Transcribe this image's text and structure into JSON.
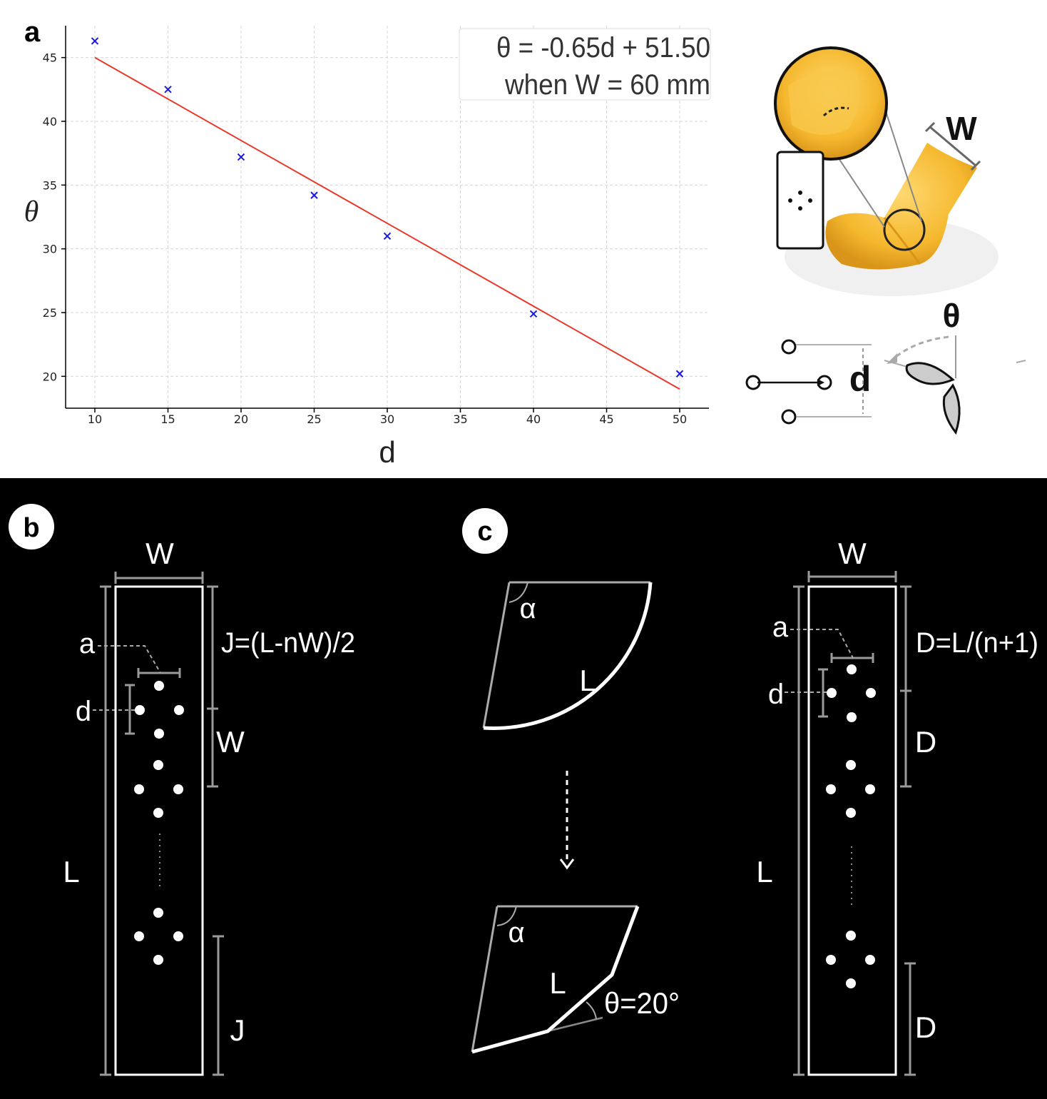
{
  "panel_a": {
    "label": "a",
    "equation": "θ = -0.65d + 51.50",
    "condition": "when W = 60 mm"
  },
  "chart_data": {
    "type": "scatter",
    "title": "",
    "xlabel": "d",
    "ylabel": "θ",
    "xlim": [
      8,
      52
    ],
    "ylim": [
      17.5,
      47.5
    ],
    "xticks": [
      10,
      15,
      20,
      25,
      30,
      35,
      40,
      45,
      50
    ],
    "yticks": [
      20,
      25,
      30,
      35,
      40,
      45
    ],
    "grid": true,
    "legend": "none",
    "series": [
      {
        "type": "scatter",
        "marker": "x",
        "color": "#1a1adb",
        "x": [
          10,
          15,
          20,
          25,
          30,
          40,
          50
        ],
        "y": [
          46.3,
          42.5,
          37.2,
          34.2,
          31.0,
          24.9,
          20.2
        ]
      },
      {
        "type": "line",
        "color": "#e8392b",
        "slope": -0.65,
        "intercept": 51.5,
        "x": [
          10,
          50
        ],
        "y": [
          45.0,
          19.0
        ]
      }
    ]
  },
  "inset_a": {
    "w_label": "W",
    "theta_label": "θ",
    "d_label": "d",
    "colors": {
      "fabric": "#f5b82e",
      "fabric_dark": "#d99a1a"
    }
  },
  "panel_b": {
    "label": "b",
    "w_label": "W",
    "j_formula": "J=(L-nW)/2",
    "a_label": "a",
    "d_label": "d",
    "w_side_label": "W",
    "l_label": "L",
    "j_label": "J"
  },
  "panel_c": {
    "label": "c",
    "alpha_top": "α",
    "l_top": "L",
    "alpha_bottom": "α",
    "l_bottom": "L",
    "theta_label": "θ=20°",
    "right_w_label": "W",
    "right_a_label": "a",
    "right_d_formula": "D=L/(n+1)",
    "right_d_label": "d",
    "right_d_mid": "D",
    "right_l_label": "L",
    "right_d_bottom": "D"
  }
}
